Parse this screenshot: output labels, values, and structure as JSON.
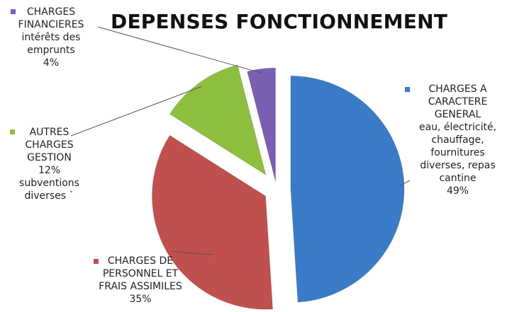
{
  "chart_data": {
    "type": "pie",
    "title": "DEPENSES FONCTIONNEMENT",
    "slices": [
      {
        "key": "general",
        "value": 49,
        "label_lines": [
          "CHARGES A",
          "CARACTERE",
          "GENERAL",
          "eau, électricité,",
          "chauffage,",
          "fournitures",
          "diverses, repas",
          "cantine",
          "49%"
        ],
        "color": "#3a7bc8"
      },
      {
        "key": "personnel",
        "value": 35,
        "label_lines": [
          "CHARGES DE",
          "PERSONNEL ET",
          "FRAIS ASSIMILES",
          "35%"
        ],
        "color": "#c0504d"
      },
      {
        "key": "autres",
        "value": 12,
        "label_lines": [
          "AUTRES",
          "CHARGES",
          "GESTION",
          "12%",
          "subventions",
          "diverses `"
        ],
        "color": "#8fbf3f"
      },
      {
        "key": "financieres",
        "value": 4,
        "label_lines": [
          "CHARGES",
          "FINANCIERES",
          "intérêts des",
          "emprunts",
          "4%"
        ],
        "color": "#7b5fb3"
      }
    ],
    "legend": "inline-callouts"
  }
}
